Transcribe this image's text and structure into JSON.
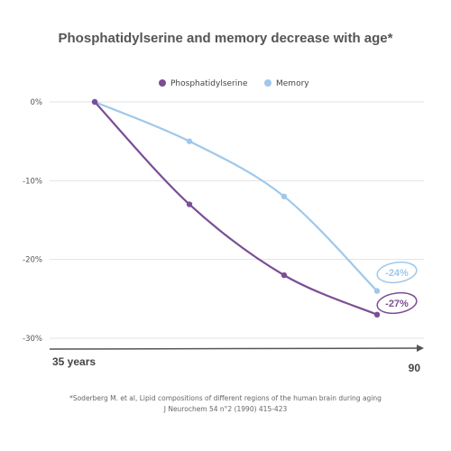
{
  "chart_data": {
    "type": "line",
    "title": "Phosphatidylserine and memory decrease with age*",
    "x": [
      35,
      50,
      70,
      90
    ],
    "x_start_label": "35 years",
    "x_end_label": "90",
    "ylim": [
      -30,
      0
    ],
    "y_ticks": [
      "0%",
      "-10%",
      "-20%",
      "-30%"
    ],
    "grid": true,
    "legend_position": "top-center",
    "series": [
      {
        "name": "Phosphatidylserine",
        "color": "#7b4e96",
        "values": [
          0,
          -13,
          -22,
          -27
        ],
        "end_label": "-27%"
      },
      {
        "name": "Memory",
        "color": "#9fc8ea",
        "values": [
          0,
          -5,
          -12,
          -24
        ],
        "end_label": "-24%"
      }
    ],
    "footnote": [
      "*Soderberg M. et al, Lipid compositions of different regions of the human brain during aging",
      "J Neurochem 54 n°2 (1990) 415-423"
    ]
  }
}
